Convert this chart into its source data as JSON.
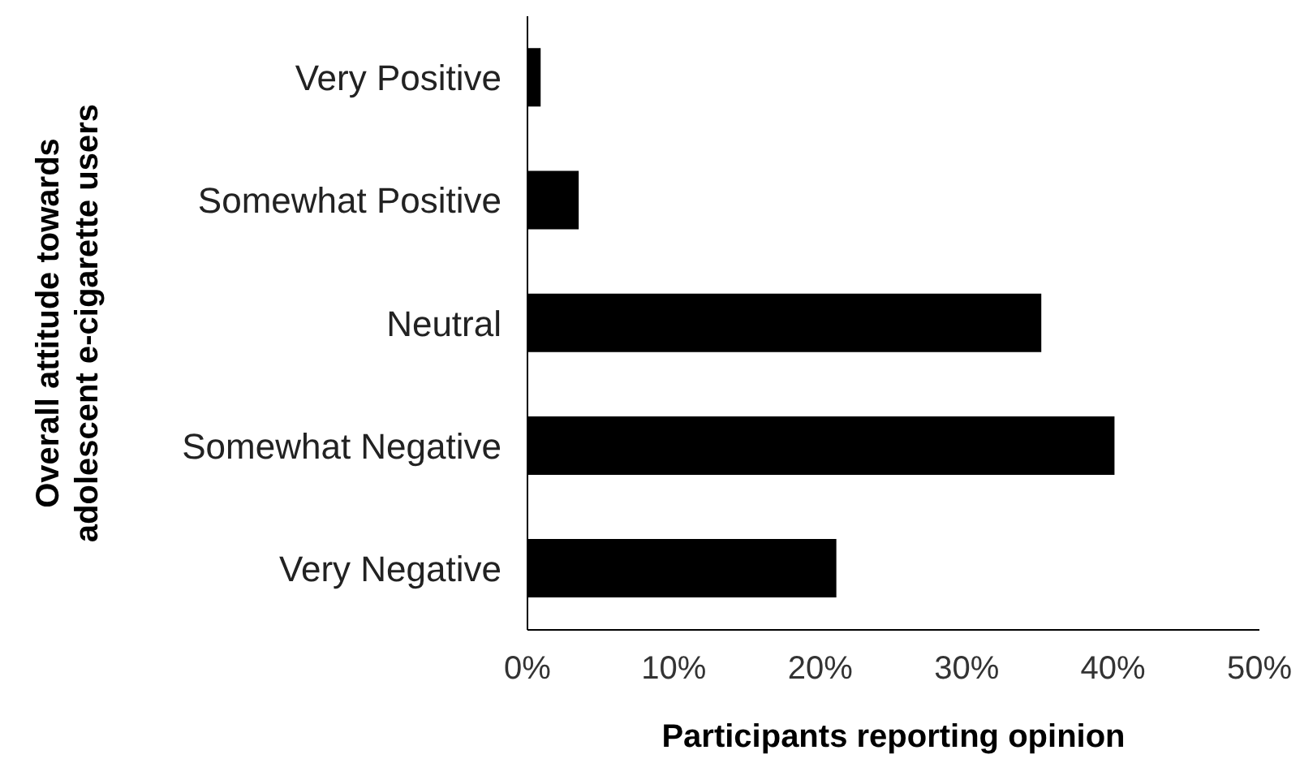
{
  "chart_data": {
    "type": "bar",
    "orientation": "horizontal",
    "xlabel": "Participants reporting opinion",
    "ylabel": "Overall attitude towards adolescent e-cigarette users",
    "categories": [
      "Very Positive",
      "Somewhat Positive",
      "Neutral",
      "Somewhat Negative",
      "Very Negative"
    ],
    "values": [
      0.9,
      3.5,
      35.1,
      40.1,
      21.1
    ],
    "color": "#000000",
    "xlim": [
      0,
      50
    ],
    "xticks": [
      {
        "value": 0,
        "label": "0%"
      },
      {
        "value": 10,
        "label": "10%"
      },
      {
        "value": 20,
        "label": "20%"
      },
      {
        "value": 30,
        "label": "30%"
      },
      {
        "value": 40,
        "label": "40%"
      },
      {
        "value": 50,
        "label": "50%"
      }
    ],
    "grid": false,
    "legend": false
  }
}
